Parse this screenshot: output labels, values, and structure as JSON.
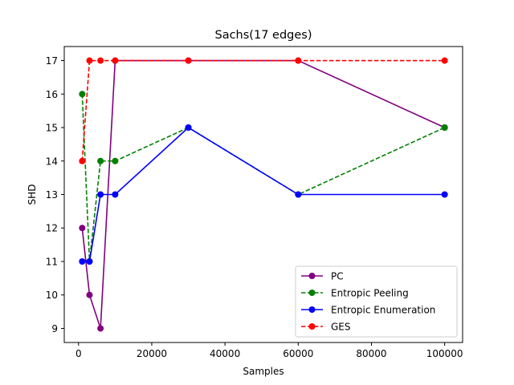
{
  "chart_data": {
    "type": "line",
    "title": "Sachs(17 edges)",
    "xlabel": "Samples",
    "ylabel": "SHD",
    "xlim": [
      -3900,
      104900
    ],
    "ylim": [
      8.58,
      17.42
    ],
    "xticks": [
      0,
      20000,
      40000,
      60000,
      80000,
      100000
    ],
    "yticks": [
      9,
      10,
      11,
      12,
      13,
      14,
      15,
      16,
      17
    ],
    "grid": false,
    "legend_position": "lower right",
    "series": [
      {
        "name": "PC",
        "color": "#800080",
        "linestyle": "solid",
        "marker": "circle",
        "x": [
          1000,
          3000,
          6000,
          10000,
          30000,
          60000,
          100000
        ],
        "y": [
          12,
          10,
          9,
          17,
          17,
          17,
          15
        ]
      },
      {
        "name": "Entropic Peeling",
        "color": "#008000",
        "linestyle": "dashed",
        "marker": "circle",
        "x": [
          1000,
          3000,
          6000,
          10000,
          30000,
          60000,
          100000
        ],
        "y": [
          16,
          11,
          14,
          14,
          15,
          13,
          15
        ]
      },
      {
        "name": "Entropic Enumeration",
        "color": "#0000ff",
        "linestyle": "solid",
        "marker": "circle",
        "x": [
          1000,
          3000,
          6000,
          10000,
          30000,
          60000,
          100000
        ],
        "y": [
          11,
          11,
          13,
          13,
          15,
          13,
          13
        ]
      },
      {
        "name": "GES",
        "color": "#ff0000",
        "linestyle": "dashed",
        "marker": "circle",
        "x": [
          1000,
          3000,
          6000,
          10000,
          30000,
          60000,
          100000
        ],
        "y": [
          14,
          17,
          17,
          17,
          17,
          17,
          17
        ]
      }
    ]
  }
}
